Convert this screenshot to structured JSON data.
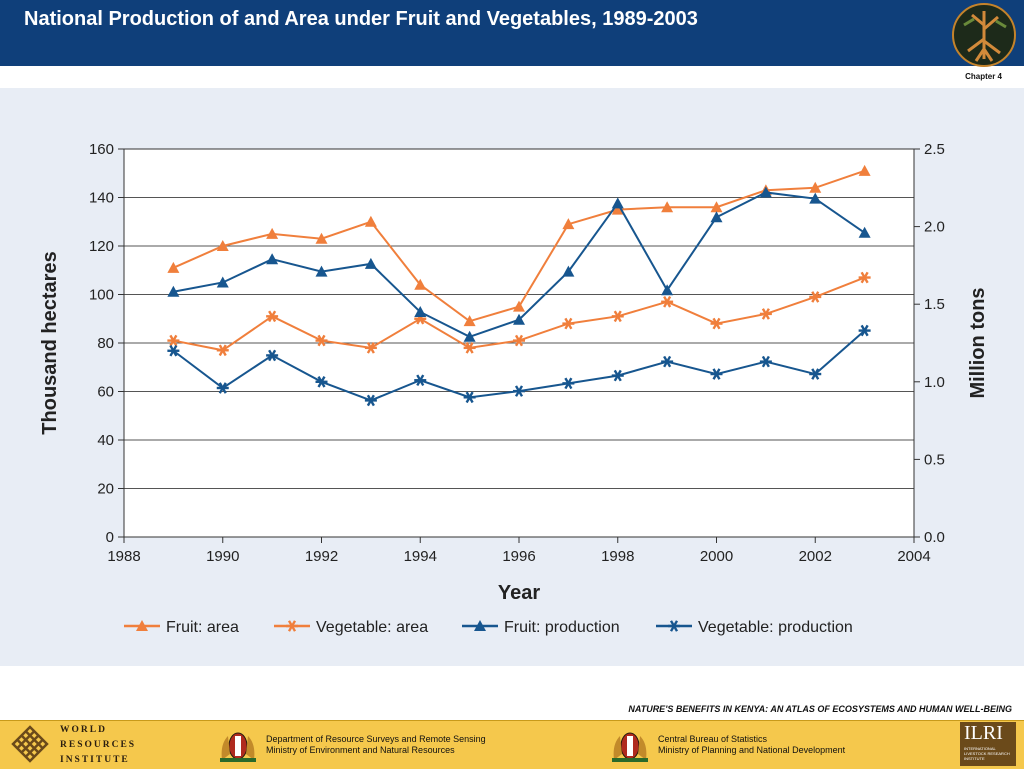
{
  "header": {
    "title": "National Production of and Area under Fruit and Vegetables, 1989-2003"
  },
  "chapter": "Chapter 4",
  "atlas_title": "NATURE'S BENEFITS IN KENYA: AN ATLAS OF ECOSYSTEMS AND HUMAN WELL-BEING",
  "footer": {
    "wri": [
      "WORLD",
      "RESOURCES",
      "INSTITUTE"
    ],
    "dept1": [
      "Department of Resource Surveys and Remote Sensing",
      "Ministry of Environment and Natural Resources"
    ],
    "dept2": [
      "Central Bureau of Statistics",
      "Ministry of Planning and National Development"
    ],
    "ilri": "ILRI",
    "ilri_sub": "INTERNATIONAL LIVESTOCK RESEARCH INSTITUTE"
  },
  "colors": {
    "header": "#0f3f7a",
    "orange": "#f07f3c",
    "blue": "#17568f",
    "footer": "#f5c84c",
    "panel": "#e8edf5"
  },
  "chart_data": {
    "type": "line",
    "xlabel": "Year",
    "ylabel": "Thousand hectares",
    "y2label": "Million tons",
    "xlim": [
      1988,
      2004
    ],
    "ylim": [
      0,
      160
    ],
    "y2lim": [
      0,
      2.5
    ],
    "xticks": [
      "1988",
      "1990",
      "1992",
      "1994",
      "1996",
      "1998",
      "2000",
      "2002",
      "2004"
    ],
    "yticks": [
      "0",
      "20",
      "40",
      "60",
      "80",
      "100",
      "120",
      "140",
      "160"
    ],
    "y2ticks": [
      "0.0",
      "0.5",
      "1.0",
      "1.5",
      "2.0",
      "2.5"
    ],
    "grid": true,
    "legend_position": "bottom",
    "x": [
      1989,
      1990,
      1991,
      1992,
      1993,
      1994,
      1995,
      1996,
      1997,
      1998,
      1999,
      2000,
      2001,
      2002,
      2003
    ],
    "series": [
      {
        "name": "Fruit: area",
        "axis": "left",
        "color": "#f07f3c",
        "marker": "triangle",
        "values": [
          111,
          120,
          125,
          123,
          130,
          104,
          89,
          95,
          129,
          135,
          136,
          136,
          143,
          144,
          151
        ]
      },
      {
        "name": "Vegetable: area",
        "axis": "left",
        "color": "#f07f3c",
        "marker": "star",
        "values": [
          81,
          77,
          91,
          81,
          78,
          90,
          78,
          81,
          88,
          91,
          97,
          88,
          92,
          99,
          107
        ]
      },
      {
        "name": "Fruit: production",
        "axis": "right",
        "color": "#17568f",
        "marker": "triangle",
        "values": [
          1.58,
          1.64,
          1.79,
          1.71,
          1.76,
          1.45,
          1.29,
          1.4,
          1.71,
          2.15,
          1.59,
          2.06,
          2.22,
          2.18,
          1.96
        ]
      },
      {
        "name": "Vegetable: production",
        "axis": "right",
        "color": "#17568f",
        "marker": "star",
        "values": [
          1.2,
          0.96,
          1.17,
          1.0,
          0.88,
          1.01,
          0.9,
          0.94,
          0.99,
          1.04,
          1.13,
          1.05,
          1.13,
          1.05,
          1.33
        ]
      }
    ]
  }
}
